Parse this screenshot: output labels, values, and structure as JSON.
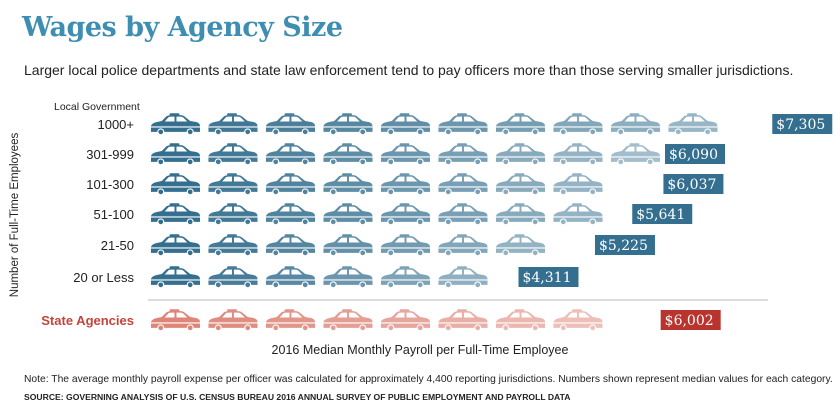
{
  "header": {
    "title": "Wages by Agency Size",
    "subtitle": "Larger local police departments and state law enforcement tend to pay officers more than those serving smaller jurisdictions."
  },
  "footer": {
    "note": "Note: The average monthly payroll expense per officer was calculated for approximately 4,400 reporting jurisdictions. Numbers shown represent median values for each category.",
    "source": "SOURCE: GOVERNING ANALYSIS OF U.S. CENSUS BUREAU 2016 ANNUAL SURVEY OF PUBLIC EMPLOYMENT AND PAYROLL DATA"
  },
  "colors": {
    "local": "#346f8f",
    "state": "#de8578",
    "state_badge": "#b8342e",
    "title": "#3e8db2"
  },
  "icons": {
    "mark": "police-car-icon"
  },
  "chart_data": {
    "type": "bar",
    "title": "Wages by Agency Size",
    "group_label": "Local Government",
    "xlabel": "2016 Median Monthly Payroll per Full-Time Employee",
    "ylabel": "Number of Full-Time Employees",
    "categories": [
      "1000+",
      "301-999",
      "101-300",
      "51-100",
      "21-50",
      "20 or Less",
      "State Agencies"
    ],
    "values": [
      7305,
      6090,
      6037,
      5641,
      5225,
      4311,
      6002
    ],
    "value_labels": [
      "$7,305",
      "$6,090",
      "$6,037",
      "$5,641",
      "$5,225",
      "$4,311",
      "$6,002"
    ],
    "groups": [
      "local",
      "local",
      "local",
      "local",
      "local",
      "local",
      "state"
    ],
    "xlim": [
      0,
      7305
    ],
    "units_per_icon": 673
  }
}
